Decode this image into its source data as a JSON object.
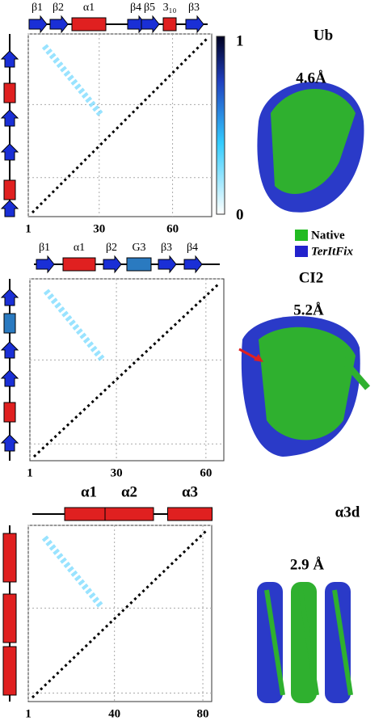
{
  "panels": [
    {
      "name": "Ub",
      "rmsd": "4.6Å",
      "secondary": [
        "β1",
        "β2",
        "α1",
        "β4",
        "β5",
        "3₁₀",
        "β3"
      ],
      "xlim": [
        1,
        76
      ],
      "xticks": [
        1,
        30,
        60
      ]
    },
    {
      "name": "CI2",
      "rmsd": "5.2Å",
      "secondary": [
        "β1",
        "α1",
        "β2",
        "G3",
        "β3",
        "β4"
      ],
      "xlim": [
        1,
        66
      ],
      "xticks": [
        1,
        30,
        60
      ]
    },
    {
      "name": "α3d",
      "rmsd": "2.9 Å",
      "secondary": [
        "α1",
        "α2",
        "α3"
      ],
      "xlim": [
        1,
        84
      ],
      "xticks": [
        1,
        40,
        80
      ]
    }
  ],
  "colorbar": {
    "top": "1",
    "bottom": "0"
  },
  "legend": [
    "Native",
    "TerItFix"
  ]
}
